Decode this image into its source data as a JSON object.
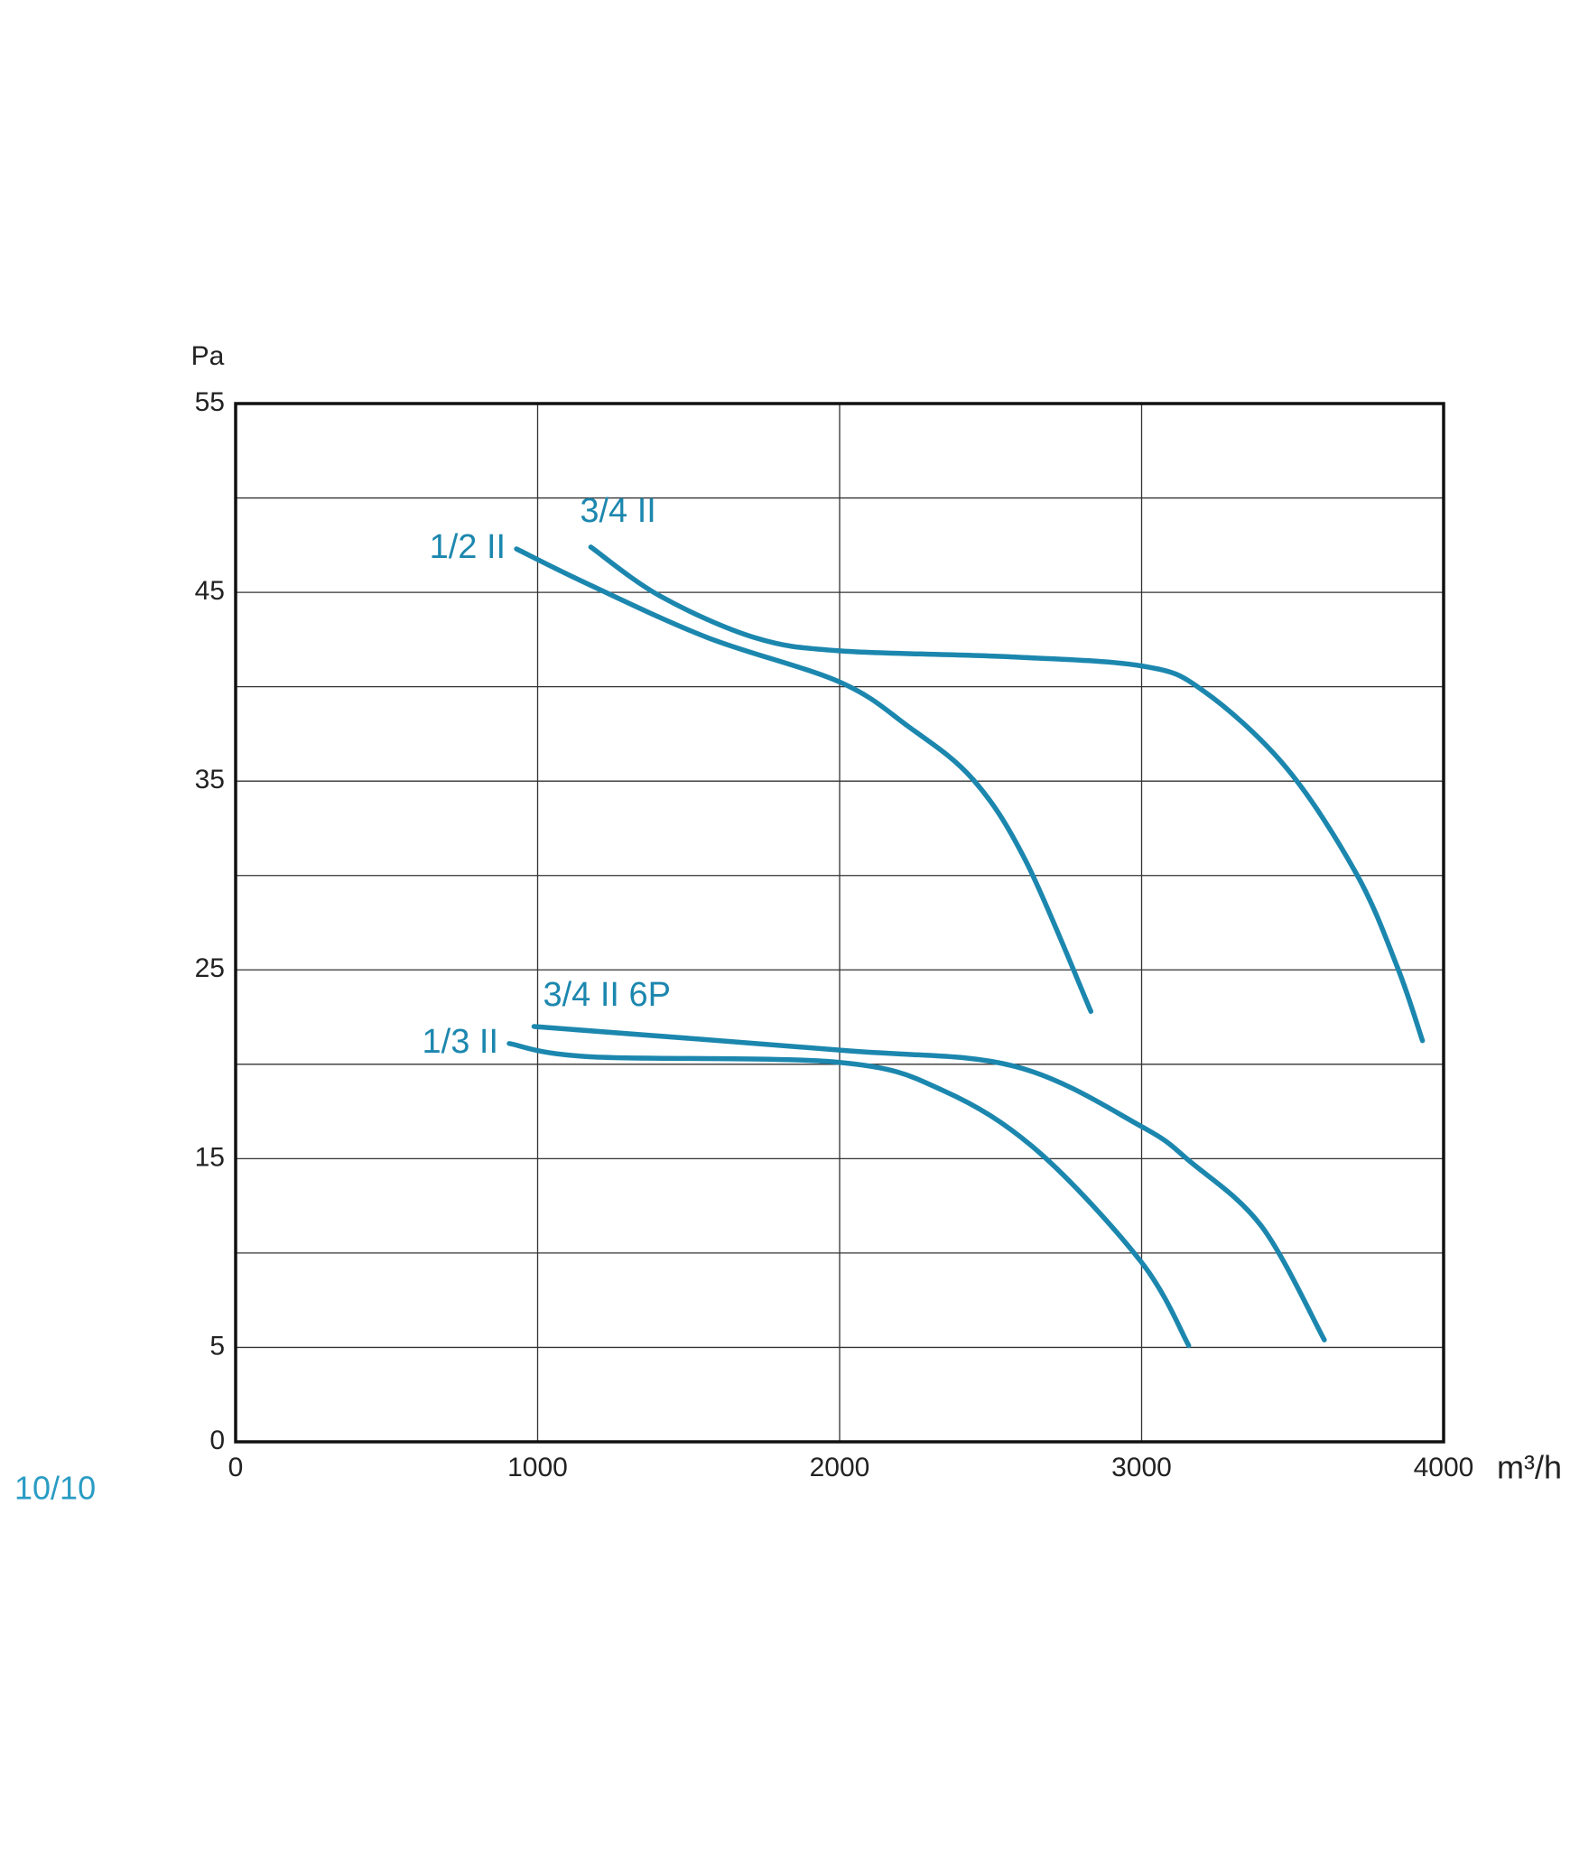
{
  "chart_data": {
    "type": "line",
    "page_label": "10/10",
    "ylabel": "Pa",
    "xlabel": "m³/h",
    "xlim": [
      0,
      4000
    ],
    "xticks": [
      0,
      1000,
      2000,
      3000,
      4000
    ],
    "ylim": [
      0,
      55
    ],
    "yticks": [
      0,
      5,
      15,
      25,
      35,
      45,
      55
    ],
    "minor_yticks": [
      10,
      20,
      30,
      40,
      50
    ],
    "grid": true,
    "series": [
      {
        "name": "1/2 II",
        "color": "#1c87ae",
        "x": [
          930,
          1172,
          1563,
          2000,
          2227,
          2441,
          2617,
          2832
        ],
        "values": [
          47.3,
          45.4,
          42.6,
          40.25,
          37.9,
          35.1,
          30.75,
          22.8
        ]
      },
      {
        "name": "3/4 II",
        "color": "#1c87ae",
        "x": [
          1176,
          1406,
          1719,
          2000,
          2539,
          3000,
          3203,
          3477,
          3711,
          3848,
          3930
        ],
        "values": [
          47.4,
          44.8,
          42.6,
          41.9,
          41.6,
          41.1,
          39.8,
          35.75,
          30.1,
          25.1,
          21.25
        ]
      },
      {
        "name": "3/4 II 6P",
        "color": "#1c87ae",
        "x": [
          988,
          2000,
          2578,
          3000,
          3164,
          3398,
          3605
        ],
        "values": [
          22.0,
          20.75,
          19.9,
          16.7,
          14.8,
          11.4,
          5.4
        ]
      },
      {
        "name": "1/3 II",
        "color": "#1c87ae",
        "x": [
          906,
          1172,
          2000,
          2344,
          2656,
          3000,
          3156
        ],
        "values": [
          21.1,
          20.4,
          20.1,
          18.6,
          15.4,
          9.5,
          5.1
        ]
      }
    ]
  }
}
